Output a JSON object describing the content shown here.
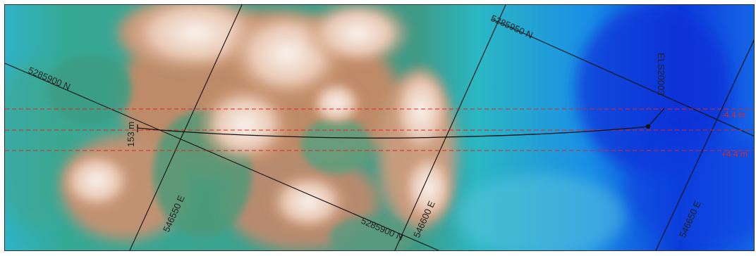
{
  "map": {
    "grid_labels": {
      "northing_upper": "5285950 N",
      "northing_left": "5285900 N",
      "northing_lower": "5285900 N",
      "easting_left": "546550 E",
      "easting_mid": "546600 E",
      "easting_right": "546650 E"
    },
    "station_label": "ELS20003",
    "distance_label": "153 m",
    "buffer_upper_label": "-4.4 m",
    "buffer_lower_label": "+4.4 m",
    "colors": {
      "buffer": "#e02424",
      "lines": "#111111",
      "deep_blue": "#0a2fd8",
      "teal": "#2f9e8c",
      "green": "#5a9a73",
      "sand": "#c8906a",
      "highland": "#f6ece4"
    }
  }
}
